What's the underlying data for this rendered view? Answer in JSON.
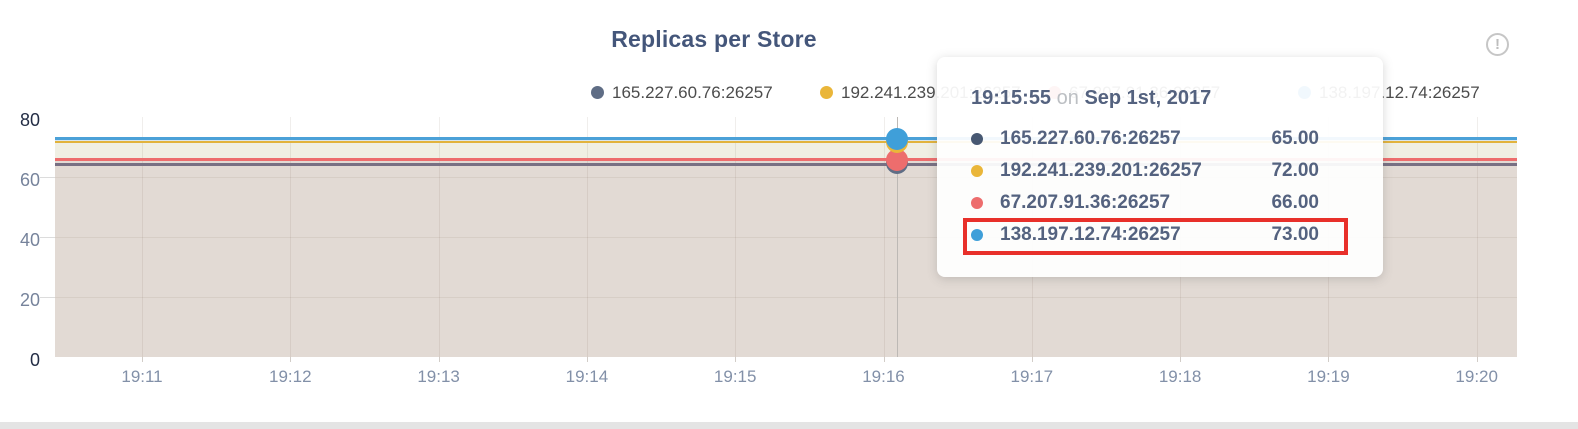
{
  "title": "Replicas per Store",
  "alert_icon": {
    "name": "exclamation-circle-icon",
    "glyph": "!"
  },
  "legend": {
    "items": [
      {
        "label": "165.227.60.76:26257",
        "color": "#5f6d85"
      },
      {
        "label": "192.241.239.201:26257",
        "color": "#eab639"
      },
      {
        "label": "67.207.91.36:26257",
        "color": "#ed6d6d"
      },
      {
        "label": "138.197.12.74:26257",
        "color": "#3f9fd9"
      }
    ]
  },
  "tooltip": {
    "time": "19:15:55",
    "conjunction": "on",
    "date": "Sep 1st, 2017",
    "rows": [
      {
        "label": "165.227.60.76:26257",
        "value": "65.00",
        "color": "#475872"
      },
      {
        "label": "192.241.239.201:26257",
        "value": "72.00",
        "color": "#eab639"
      },
      {
        "label": "67.207.91.36:26257",
        "value": "66.00",
        "color": "#ed6d6d"
      },
      {
        "label": "138.197.12.74:26257",
        "value": "73.00",
        "color": "#3f9fd9"
      }
    ],
    "highlight_index": 3,
    "highlight_color": "#e8302a"
  },
  "axes": {
    "x_ticks": [
      "19:11",
      "19:12",
      "19:13",
      "19:14",
      "19:15",
      "19:16",
      "19:17",
      "19:18",
      "19:19",
      "19:20"
    ],
    "y_ticks": [
      {
        "label": "80",
        "value": 80,
        "emphasis": true
      },
      {
        "label": "60",
        "value": 60,
        "emphasis": false
      },
      {
        "label": "40",
        "value": 40,
        "emphasis": false
      },
      {
        "label": "20",
        "value": 20,
        "emphasis": false
      },
      {
        "label": "0",
        "value": 0,
        "emphasis": true
      }
    ]
  },
  "chart_data": {
    "type": "area",
    "title": "Replicas per Store",
    "x": [
      "19:11",
      "19:12",
      "19:13",
      "19:14",
      "19:15",
      "19:16",
      "19:17",
      "19:18",
      "19:19",
      "19:20"
    ],
    "ylim": [
      0,
      80
    ],
    "y_ticks": [
      0,
      20,
      40,
      60,
      80
    ],
    "grid": true,
    "legend_position": "top",
    "series": [
      {
        "name": "165.227.60.76:26257",
        "color": "#5f6d85",
        "constant_value": 65,
        "values": [
          65,
          65,
          65,
          65,
          65,
          65,
          65,
          65,
          65,
          65
        ]
      },
      {
        "name": "192.241.239.201:26257",
        "color": "#eab639",
        "constant_value": 72,
        "values": [
          72,
          72,
          72,
          72,
          72,
          72,
          72,
          72,
          72,
          72
        ]
      },
      {
        "name": "67.207.91.36:26257",
        "color": "#ed6d6d",
        "constant_value": 66,
        "values": [
          66,
          66,
          66,
          66,
          66,
          66,
          66,
          66,
          66,
          66
        ]
      },
      {
        "name": "138.197.12.74:26257",
        "color": "#3f9fd9",
        "constant_value": 73,
        "values": [
          73,
          73,
          73,
          73,
          73,
          73,
          73,
          73,
          73,
          73
        ]
      }
    ],
    "hover_point": {
      "time": "19:15:55",
      "date": "Sep 1st, 2017",
      "values": {
        "165.227.60.76:26257": 65,
        "192.241.239.201:26257": 72,
        "67.207.91.36:26257": 66,
        "138.197.12.74:26257": 73
      }
    },
    "fill_colors": {
      "band_upper": "#f0efe3",
      "band_lower": "#e2dad4"
    }
  }
}
